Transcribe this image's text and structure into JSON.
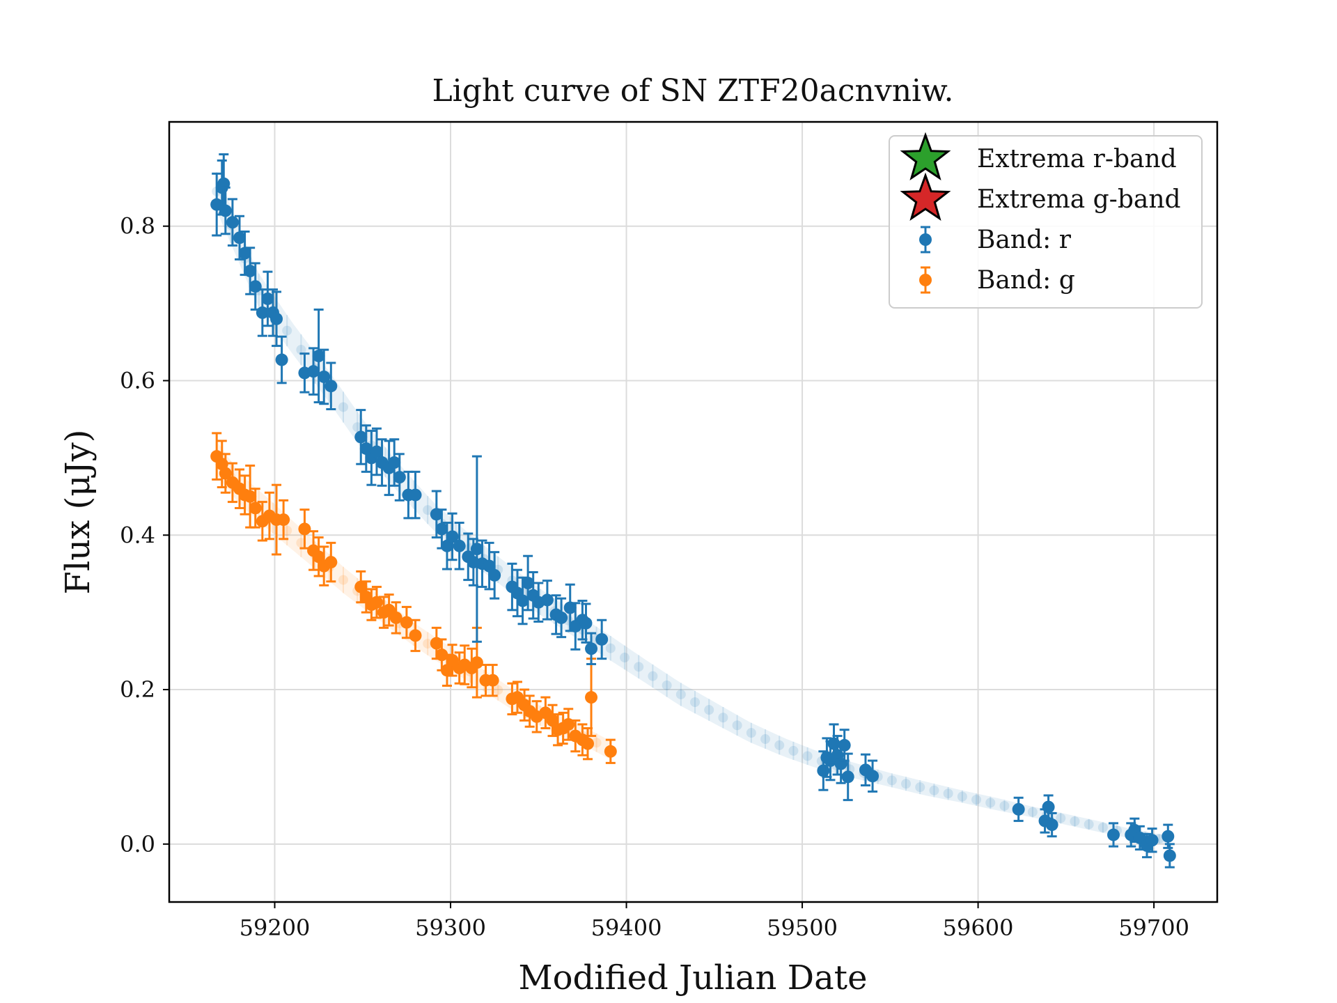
{
  "chart_data": {
    "type": "scatter",
    "title": "Light curve of SN ZTF20acnvniw.",
    "xlabel": "Modified Julian Date",
    "ylabel": "Flux (μJy)",
    "xlim": [
      59140,
      59736
    ],
    "ylim": [
      -0.075,
      0.935
    ],
    "xticks": [
      59200,
      59300,
      59400,
      59500,
      59600,
      59700
    ],
    "yticks": [
      0.0,
      0.2,
      0.4,
      0.6,
      0.8
    ],
    "grid": true,
    "legend_position": "top-right",
    "legend": [
      {
        "label": "Extrema r-band",
        "marker": "star",
        "color": "#2ca02c"
      },
      {
        "label": "Extrema g-band",
        "marker": "star",
        "color": "#d62728"
      },
      {
        "label": "Band: r",
        "marker": "errorbar-point",
        "color": "#1f77b4"
      },
      {
        "label": "Band: g",
        "marker": "errorbar-point",
        "color": "#ff7f0e"
      }
    ],
    "model_curves": [
      {
        "band": "r",
        "color": "#1f77b4",
        "x": [
          59167,
          59190,
          59210,
          59230,
          59250,
          59270,
          59290,
          59310,
          59330,
          59350,
          59370,
          59390,
          59410,
          59430,
          59450,
          59470,
          59490,
          59510,
          59530,
          59550,
          59570,
          59590,
          59610,
          59630,
          59650,
          59670,
          59690,
          59710
        ],
        "y": [
          0.845,
          0.72,
          0.655,
          0.595,
          0.53,
          0.475,
          0.425,
          0.385,
          0.35,
          0.315,
          0.285,
          0.255,
          0.225,
          0.195,
          0.17,
          0.145,
          0.125,
          0.108,
          0.095,
          0.083,
          0.072,
          0.062,
          0.052,
          0.042,
          0.032,
          0.022,
          0.012,
          0.004
        ],
        "err": [
          0.025,
          0.022,
          0.02,
          0.02,
          0.02,
          0.019,
          0.018,
          0.018,
          0.017,
          0.017,
          0.016,
          0.016,
          0.015,
          0.015,
          0.014,
          0.013,
          0.012,
          0.011,
          0.01,
          0.009,
          0.009,
          0.008,
          0.008,
          0.007,
          0.007,
          0.007,
          0.006,
          0.006
        ]
      },
      {
        "band": "g",
        "color": "#ff7f0e",
        "x": [
          59167,
          59180,
          59200,
          59220,
          59240,
          59260,
          59280,
          59300,
          59320,
          59340,
          59360,
          59380,
          59392
        ],
        "y": [
          0.5,
          0.46,
          0.42,
          0.38,
          0.34,
          0.305,
          0.27,
          0.24,
          0.21,
          0.18,
          0.155,
          0.135,
          0.12
        ],
        "err": [
          0.022,
          0.02,
          0.02,
          0.018,
          0.017,
          0.016,
          0.015,
          0.015,
          0.014,
          0.013,
          0.013,
          0.012,
          0.012
        ]
      }
    ],
    "series": [
      {
        "band": "r",
        "color": "#1f77b4",
        "x": [
          59167,
          59170,
          59171,
          59172,
          59176,
          59180,
          59183,
          59186,
          59189,
          59193,
          59196,
          59199,
          59201,
          59204,
          59217,
          59222,
          59225,
          59228,
          59232,
          59249,
          59252,
          59255,
          59258,
          59261,
          59265,
          59268,
          59271,
          59276,
          59280,
          59292,
          59295,
          59298,
          59301,
          59305,
          59310,
          59313,
          59315,
          59318,
          59322,
          59325,
          59335,
          59338,
          59341,
          59344,
          59347,
          59350,
          59355,
          59360,
          59363,
          59368,
          59371,
          59375,
          59377,
          59380,
          59386,
          59512,
          59514,
          59516,
          59518,
          59520,
          59522,
          59524,
          59526,
          59536,
          59540,
          59623,
          59638,
          59640,
          59642,
          59677,
          59687,
          59689,
          59692,
          59696,
          59699,
          59708,
          59709
        ],
        "y": [
          0.828,
          0.85,
          0.855,
          0.82,
          0.805,
          0.785,
          0.765,
          0.742,
          0.722,
          0.688,
          0.706,
          0.688,
          0.68,
          0.627,
          0.61,
          0.612,
          0.632,
          0.605,
          0.593,
          0.527,
          0.512,
          0.5,
          0.508,
          0.494,
          0.487,
          0.494,
          0.475,
          0.452,
          0.452,
          0.427,
          0.408,
          0.386,
          0.398,
          0.386,
          0.372,
          0.365,
          0.382,
          0.363,
          0.36,
          0.348,
          0.333,
          0.325,
          0.315,
          0.338,
          0.322,
          0.313,
          0.316,
          0.297,
          0.293,
          0.306,
          0.282,
          0.29,
          0.286,
          0.253,
          0.265,
          0.095,
          0.112,
          0.108,
          0.13,
          0.115,
          0.104,
          0.128,
          0.087,
          0.096,
          0.088,
          0.045,
          0.03,
          0.048,
          0.025,
          0.012,
          0.012,
          0.018,
          0.008,
          -0.002,
          0.005,
          0.01,
          -0.015
        ],
        "err": [
          0.04,
          0.035,
          0.038,
          0.03,
          0.03,
          0.028,
          0.028,
          0.03,
          0.03,
          0.03,
          0.035,
          0.03,
          0.035,
          0.03,
          0.025,
          0.03,
          0.06,
          0.035,
          0.03,
          0.035,
          0.03,
          0.035,
          0.03,
          0.03,
          0.035,
          0.03,
          0.03,
          0.03,
          0.03,
          0.03,
          0.025,
          0.03,
          0.03,
          0.03,
          0.03,
          0.03,
          0.12,
          0.03,
          0.03,
          0.03,
          0.03,
          0.03,
          0.03,
          0.035,
          0.03,
          0.025,
          0.025,
          0.025,
          0.025,
          0.03,
          0.03,
          0.025,
          0.025,
          0.02,
          0.025,
          0.025,
          0.025,
          0.025,
          0.025,
          0.025,
          0.025,
          0.02,
          0.03,
          0.02,
          0.02,
          0.015,
          0.015,
          0.015,
          0.015,
          0.015,
          0.015,
          0.015,
          0.015,
          0.015,
          0.015,
          0.015,
          0.015
        ]
      },
      {
        "band": "g",
        "color": "#ff7f0e",
        "x": [
          59167,
          59170,
          59172,
          59176,
          59180,
          59183,
          59186,
          59189,
          59193,
          59197,
          59201,
          59205,
          59217,
          59222,
          59225,
          59228,
          59232,
          59249,
          59252,
          59255,
          59258,
          59262,
          59265,
          59269,
          59275,
          59280,
          59292,
          59295,
          59298,
          59301,
          59305,
          59308,
          59312,
          59315,
          59320,
          59324,
          59335,
          59338,
          59342,
          59345,
          59349,
          59354,
          59358,
          59361,
          59364,
          59367,
          59371,
          59375,
          59378,
          59380,
          59391
        ],
        "y": [
          0.502,
          0.492,
          0.48,
          0.468,
          0.46,
          0.452,
          0.45,
          0.435,
          0.418,
          0.425,
          0.42,
          0.42,
          0.408,
          0.38,
          0.372,
          0.36,
          0.365,
          0.333,
          0.32,
          0.31,
          0.313,
          0.3,
          0.303,
          0.293,
          0.287,
          0.27,
          0.26,
          0.245,
          0.225,
          0.238,
          0.228,
          0.232,
          0.228,
          0.235,
          0.212,
          0.212,
          0.188,
          0.19,
          0.18,
          0.172,
          0.165,
          0.17,
          0.16,
          0.148,
          0.15,
          0.155,
          0.14,
          0.135,
          0.13,
          0.19,
          0.12
        ],
        "err": [
          0.03,
          0.03,
          0.025,
          0.025,
          0.025,
          0.025,
          0.04,
          0.025,
          0.025,
          0.03,
          0.045,
          0.025,
          0.025,
          0.025,
          0.025,
          0.025,
          0.025,
          0.02,
          0.02,
          0.02,
          0.02,
          0.02,
          0.02,
          0.02,
          0.02,
          0.02,
          0.02,
          0.02,
          0.02,
          0.02,
          0.02,
          0.025,
          0.025,
          0.045,
          0.02,
          0.02,
          0.02,
          0.02,
          0.02,
          0.02,
          0.02,
          0.02,
          0.02,
          0.02,
          0.02,
          0.02,
          0.02,
          0.02,
          0.02,
          0.05,
          0.015
        ]
      }
    ]
  }
}
